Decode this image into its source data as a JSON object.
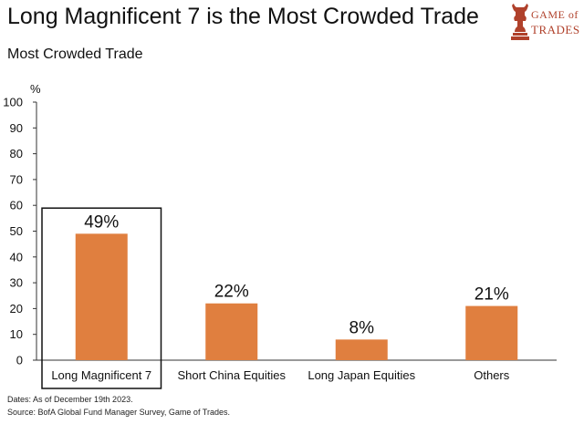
{
  "header": {
    "title": "Long Magnificent 7 is the Most Crowded Trade",
    "subtitle": "Most Crowded Trade"
  },
  "logo": {
    "line1": "GAME of",
    "line2": "TRADES",
    "icon": "bull-chess-knight-icon",
    "color": "#b0412b"
  },
  "chart_data": {
    "type": "bar",
    "title": "Most Crowded Trade",
    "ylabel": "%",
    "xlabel": "",
    "ylim": [
      0,
      100
    ],
    "yticks": [
      0,
      10,
      20,
      30,
      40,
      50,
      60,
      70,
      80,
      90,
      100
    ],
    "categories": [
      "Long Magnificent 7",
      "Short China Equities",
      "Long Japan Equities",
      "Others"
    ],
    "values": [
      49,
      22,
      8,
      21
    ],
    "data_labels": [
      "49%",
      "22%",
      "8%",
      "21%"
    ],
    "highlighted_category": "Long Magnificent 7",
    "bar_color": "#e07f3f",
    "grid": false,
    "legend": "none"
  },
  "footer": {
    "dates": "Dates: As of December 19th 2023.",
    "source": "Source: BofA Global Fund Manager Survey, Game of Trades."
  }
}
